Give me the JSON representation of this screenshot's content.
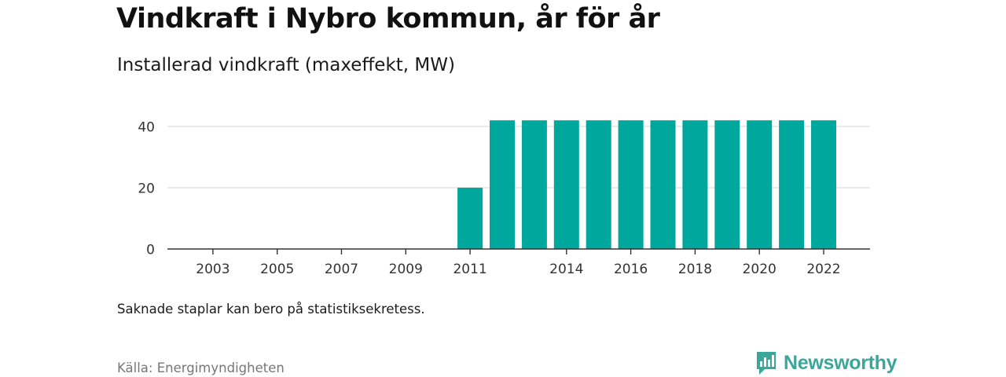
{
  "title": "Vindkraft i Nybro kommun, år för år",
  "subtitle": "Installerad vindkraft (maxeffekt, MW)",
  "note": "Saknade staplar kan bero på statistiksekretess.",
  "source": "Källa: Energimyndigheten",
  "brand": {
    "name": "Newsworthy",
    "color": "#3aa79a",
    "icon": "newsworthy-logo-icon"
  },
  "colors": {
    "bar": "#00a79d",
    "grid": "#dddddd",
    "axis": "#333333"
  },
  "chart_data": {
    "type": "bar",
    "title": "Vindkraft i Nybro kommun, år för år",
    "subtitle": "Installerad vindkraft (maxeffekt, MW)",
    "xlabel": "",
    "ylabel": "",
    "categories": [
      "2002",
      "2003",
      "2004",
      "2005",
      "2006",
      "2007",
      "2008",
      "2009",
      "2010",
      "2011",
      "2012",
      "2013",
      "2014",
      "2015",
      "2016",
      "2017",
      "2018",
      "2019",
      "2020",
      "2021",
      "2022"
    ],
    "values": [
      0,
      0,
      0,
      0,
      0,
      0,
      0,
      0,
      0,
      20,
      42,
      42,
      42,
      42,
      42,
      42,
      42,
      42,
      42,
      42,
      42
    ],
    "xticks": [
      "2003",
      "2005",
      "2007",
      "2009",
      "2011",
      "2014",
      "2016",
      "2018",
      "2020",
      "2022"
    ],
    "yticks": [
      0,
      20,
      40
    ],
    "ylim": [
      0,
      40
    ],
    "grid": true,
    "legend": "none"
  }
}
